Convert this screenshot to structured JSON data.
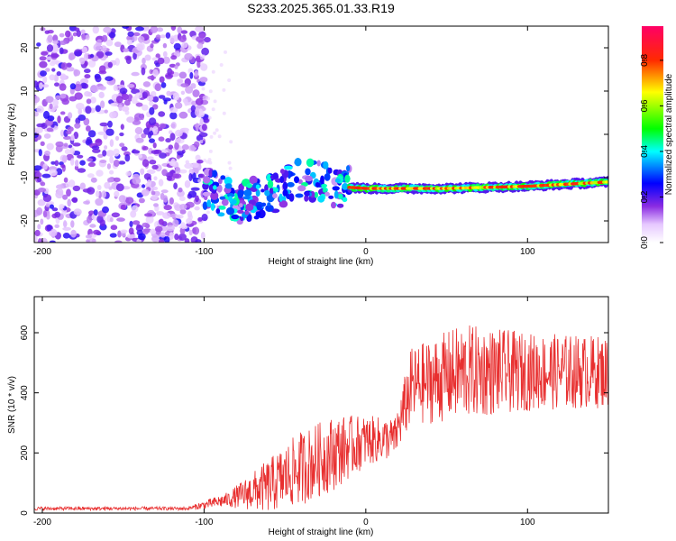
{
  "title": "S233.2025.365.01.33.R19",
  "colors": {
    "snr_line": "#e83030",
    "axis": "#000000",
    "background": "#ffffff"
  },
  "chart_data": [
    {
      "type": "heatmap",
      "name": "spectrogram",
      "xlabel": "Height of straight line (km)",
      "ylabel": "Frequency (Hz)",
      "xlim": [
        -205,
        150
      ],
      "ylim": [
        -25,
        25
      ],
      "x_ticks": [
        -200,
        -100,
        0,
        100
      ],
      "y_ticks": [
        20,
        10,
        0,
        -10,
        -20
      ],
      "colorbar": {
        "label": "Normalized spectral amplitude",
        "ticks": [
          0.0,
          0.2,
          0.4,
          0.6,
          0.8
        ],
        "range": [
          0,
          0.95
        ],
        "stops": [
          {
            "v": 0.0,
            "color": "#ffffff"
          },
          {
            "v": 0.08,
            "color": "#e6c8ff"
          },
          {
            "v": 0.16,
            "color": "#8a2be2"
          },
          {
            "v": 0.26,
            "color": "#0000ff"
          },
          {
            "v": 0.4,
            "color": "#00ffff"
          },
          {
            "v": 0.5,
            "color": "#00ff00"
          },
          {
            "v": 0.66,
            "color": "#ffff00"
          },
          {
            "v": 0.8,
            "color": "#ff2a00"
          },
          {
            "v": 0.95,
            "color": "#ff0066"
          }
        ]
      },
      "features": {
        "noise_region_x": [
          -205,
          -98
        ],
        "signal_track": [
          {
            "x": -100,
            "f": -12
          },
          {
            "x": -80,
            "f": -16
          },
          {
            "x": -60,
            "f": -14
          },
          {
            "x": -40,
            "f": -10
          },
          {
            "x": -20,
            "f": -12
          },
          {
            "x": 0,
            "f": -12.5
          },
          {
            "x": 20,
            "f": -12.5
          },
          {
            "x": 50,
            "f": -12.5
          },
          {
            "x": 100,
            "f": -12
          },
          {
            "x": 150,
            "f": -11
          }
        ]
      }
    },
    {
      "type": "line",
      "name": "snr",
      "xlabel": "Height of straight line (km)",
      "ylabel": "SNR (10 * v/v)",
      "xlim": [
        -205,
        150
      ],
      "ylim": [
        0,
        720
      ],
      "x_ticks": [
        -200,
        -100,
        0,
        100
      ],
      "y_ticks": [
        0,
        200,
        400,
        600
      ],
      "trend": [
        {
          "x": -205,
          "mean": 15,
          "spread": 12
        },
        {
          "x": -110,
          "mean": 15,
          "spread": 12
        },
        {
          "x": -85,
          "mean": 45,
          "spread": 50
        },
        {
          "x": -60,
          "mean": 90,
          "spread": 180
        },
        {
          "x": -40,
          "mean": 150,
          "spread": 250
        },
        {
          "x": -20,
          "mean": 200,
          "spread": 250
        },
        {
          "x": 0,
          "mean": 240,
          "spread": 170
        },
        {
          "x": 18,
          "mean": 250,
          "spread": 130
        },
        {
          "x": 28,
          "mean": 420,
          "spread": 260
        },
        {
          "x": 60,
          "mean": 470,
          "spread": 320
        },
        {
          "x": 100,
          "mean": 470,
          "spread": 260
        },
        {
          "x": 150,
          "mean": 470,
          "spread": 240
        }
      ]
    }
  ]
}
